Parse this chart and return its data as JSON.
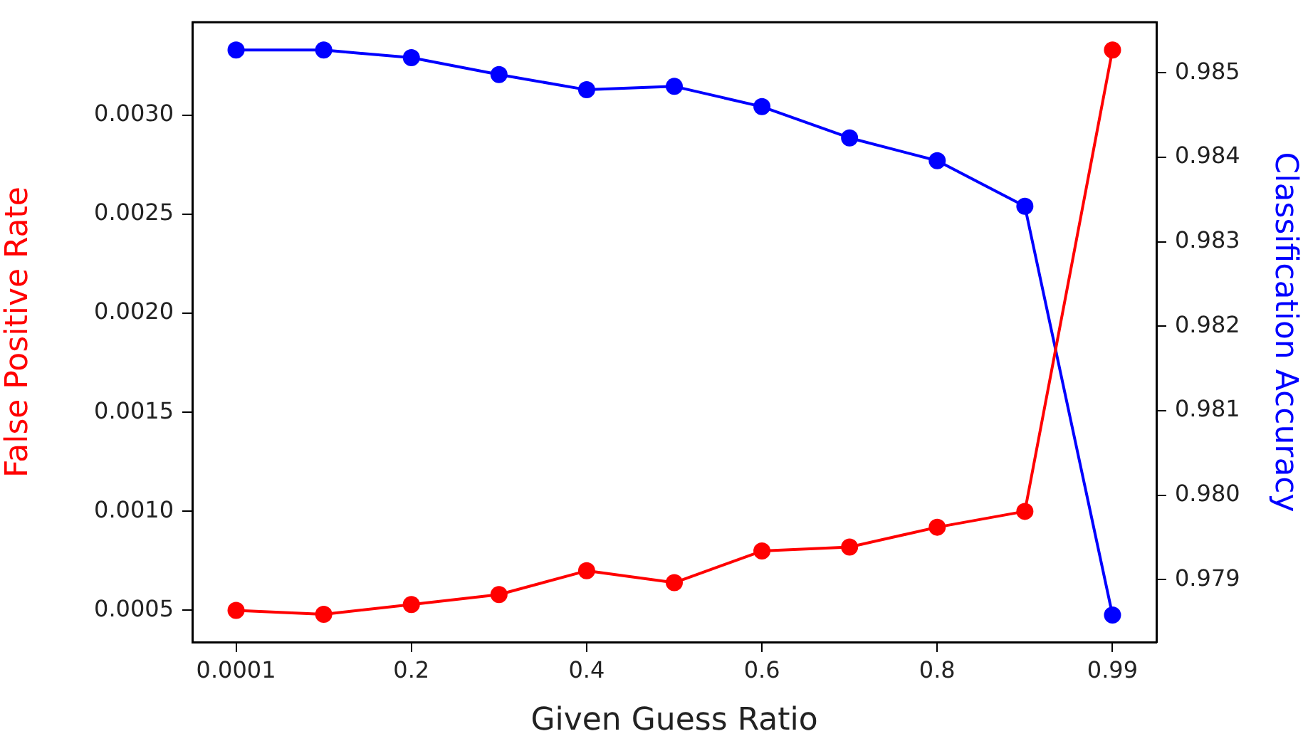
{
  "chart_data": {
    "type": "line",
    "xlabel": "Given Guess Ratio",
    "ylabel": "False Positive Rate",
    "y2label": "Classification Accuracy",
    "categories": [
      "0.0001",
      null,
      "0.2",
      null,
      "0.4",
      null,
      "0.6",
      null,
      "0.8",
      null,
      "0.99"
    ],
    "series": [
      {
        "color": "#ff0000",
        "values": [
          0.0005,
          0.00048,
          0.00053,
          0.00058,
          0.0007,
          0.00064,
          0.0008,
          0.00082,
          0.00092,
          0.001,
          0.00333
        ]
      },
      {
        "color": "#0000ff",
        "axis": "y2",
        "values": [
          0.98527,
          0.98527,
          0.98518,
          0.98498,
          0.9848,
          0.98484,
          0.9846,
          0.98423,
          0.98396,
          0.98342,
          0.97858
        ]
      }
    ],
    "ylim": [
      0.00034,
      0.00347
    ],
    "yticks": [
      {
        "value": 0.0005,
        "label": "0.0005"
      },
      {
        "value": 0.001,
        "label": "0.0010"
      },
      {
        "value": 0.0015,
        "label": "0.0015"
      },
      {
        "value": 0.002,
        "label": "0.0020"
      },
      {
        "value": 0.0025,
        "label": "0.0025"
      },
      {
        "value": 0.003,
        "label": "0.0030"
      }
    ],
    "y2lim": [
      0.97826,
      0.9856
    ],
    "y2ticks": [
      {
        "value": 0.979,
        "label": "0.979"
      },
      {
        "value": 0.98,
        "label": "0.980"
      },
      {
        "value": 0.981,
        "label": "0.981"
      },
      {
        "value": 0.982,
        "label": "0.982"
      },
      {
        "value": 0.983,
        "label": "0.983"
      },
      {
        "value": 0.984,
        "label": "0.984"
      },
      {
        "value": 0.985,
        "label": "0.985"
      }
    ],
    "grid": false,
    "legend": false,
    "marker": "circle",
    "line_style": "solid"
  }
}
